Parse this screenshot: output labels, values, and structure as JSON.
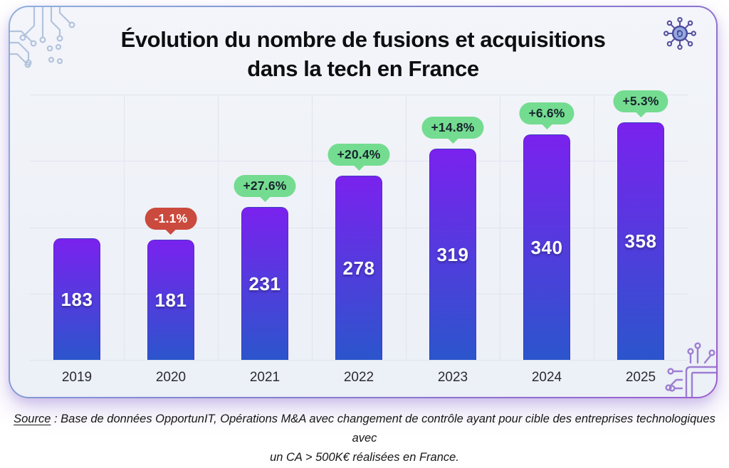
{
  "header": {
    "title_line1": "Évolution du nombre de fusions et acquisitions",
    "title_line2": "dans la tech en France"
  },
  "icons": {
    "top_left_decoration": "circuit-board-icon",
    "top_right": "network-hub-icon",
    "bottom_right_decoration": "circuit-chip-icon"
  },
  "chart_data": {
    "type": "bar",
    "title": "Évolution du nombre de fusions et acquisitions dans la tech en France",
    "categories": [
      "2019",
      "2020",
      "2021",
      "2022",
      "2023",
      "2024",
      "2025"
    ],
    "values": [
      183,
      181,
      231,
      278,
      319,
      340,
      358
    ],
    "growth_badges": [
      null,
      "-1.1%",
      "+27.6%",
      "+20.4%",
      "+14.8%",
      "+6.6%",
      "+5.3%"
    ],
    "xlabel": "",
    "ylabel": "",
    "ylim": [
      0,
      400
    ],
    "grid": true,
    "legend": "none",
    "colors": {
      "bar_gradient_top": "#7a22ee",
      "bar_gradient_bottom": "#2b55cc",
      "badge_positive": "#74dc90",
      "badge_positive_text": "#17242d",
      "badge_negative": "#cb4a3e",
      "badge_negative_text": "#ffffff",
      "gridline": "#dfe4ee",
      "card_border_start": "#8fb0dd",
      "card_border_end": "#9a5fd0"
    }
  },
  "source": {
    "label": "Source",
    "text_line1": " : Base de données OpportunIT, Opérations M&A avec changement de contrôle ayant pour cible des entreprises technologiques avec",
    "text_line2": "un CA > 500K€ réalisées en France."
  }
}
